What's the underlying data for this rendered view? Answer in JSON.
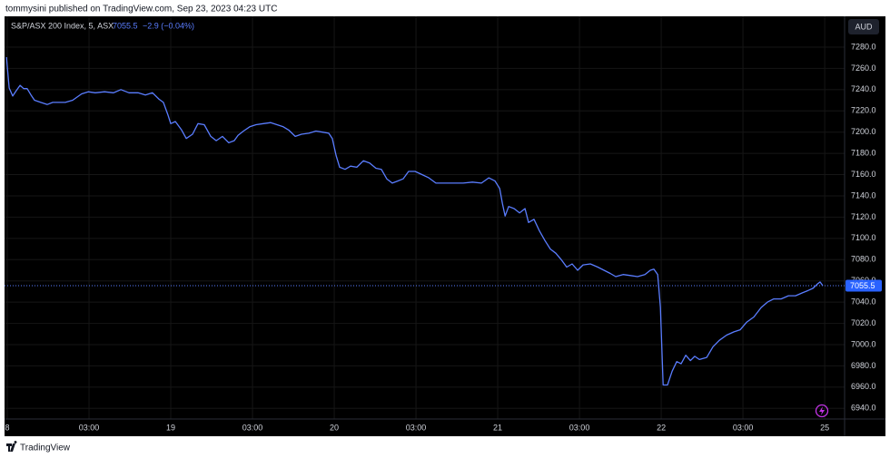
{
  "header": {
    "text": "tommysini published on TradingView.com, Sep 23, 2023 04:23 UTC"
  },
  "footer": {
    "brand": "TradingView"
  },
  "chart_data": {
    "type": "line",
    "currency": "AUD",
    "change": "−2.9 (−0.04%)",
    "last_value": 7055.5,
    "grid": true,
    "xlim": [
      -0.1,
      30.73
    ],
    "ylim": [
      6930,
      7309
    ],
    "xticks": [
      {
        "value": 0,
        "label": "8"
      },
      {
        "value": 3,
        "label": "03:00"
      },
      {
        "value": 6,
        "label": "19"
      },
      {
        "value": 9,
        "label": "03:00"
      },
      {
        "value": 12,
        "label": "20"
      },
      {
        "value": 15,
        "label": "03:00"
      },
      {
        "value": 18,
        "label": "21"
      },
      {
        "value": 21,
        "label": "03:00"
      },
      {
        "value": 24,
        "label": "22"
      },
      {
        "value": 27,
        "label": "03:00"
      },
      {
        "value": 30,
        "label": "25"
      }
    ],
    "yticks": [
      {
        "value": 6940,
        "label": "6940.0"
      },
      {
        "value": 6960,
        "label": "6960.0"
      },
      {
        "value": 6980,
        "label": "6980.0"
      },
      {
        "value": 7000,
        "label": "7000.0"
      },
      {
        "value": 7020,
        "label": "7020.0"
      },
      {
        "value": 7040,
        "label": "7040.0"
      },
      {
        "value": 7060,
        "label": "7060.0"
      },
      {
        "value": 7080,
        "label": "7080.0"
      },
      {
        "value": 7100,
        "label": "7100.0"
      },
      {
        "value": 7120,
        "label": "7120.0"
      },
      {
        "value": 7140,
        "label": "7140.0"
      },
      {
        "value": 7160,
        "label": "7160.0"
      },
      {
        "value": 7180,
        "label": "7180.0"
      },
      {
        "value": 7200,
        "label": "7200.0"
      },
      {
        "value": 7220,
        "label": "7220.0"
      },
      {
        "value": 7240,
        "label": "7240.0"
      },
      {
        "value": 7260,
        "label": "7260.0"
      },
      {
        "value": 7280,
        "label": "7280.0"
      }
    ],
    "series": [
      {
        "name": "S&P/ASX 200 Index, 5, ASX",
        "color": "#5a7dff",
        "x": [
          -0.03,
          0.07,
          0.2,
          0.33,
          0.47,
          0.6,
          0.73,
          0.87,
          1,
          1.23,
          1.47,
          1.67,
          1.9,
          2.13,
          2.4,
          2.73,
          2.97,
          3.23,
          3.57,
          3.9,
          4.17,
          4.47,
          4.8,
          5.07,
          5.33,
          5.57,
          5.73,
          5.9,
          6,
          6.17,
          6.4,
          6.57,
          6.8,
          7,
          7.23,
          7.47,
          7.67,
          7.9,
          8.13,
          8.33,
          8.47,
          8.67,
          8.9,
          9.13,
          9.4,
          9.67,
          9.9,
          10.13,
          10.33,
          10.57,
          10.8,
          11.07,
          11.33,
          11.57,
          11.8,
          11.93,
          12.07,
          12.2,
          12.4,
          12.6,
          12.83,
          13.07,
          13.3,
          13.53,
          13.73,
          13.93,
          14.13,
          14.33,
          14.53,
          14.73,
          14.97,
          15.23,
          15.47,
          15.73,
          16.07,
          16.4,
          16.73,
          17.07,
          17.4,
          17.67,
          17.9,
          18.07,
          18.17,
          18.27,
          18.4,
          18.6,
          18.8,
          19,
          19.13,
          19.33,
          19.53,
          19.73,
          19.93,
          20.13,
          20.33,
          20.53,
          20.73,
          20.93,
          21.13,
          21.4,
          21.67,
          21.9,
          22.13,
          22.33,
          22.6,
          22.87,
          23.13,
          23.4,
          23.6,
          23.73,
          23.87,
          23.97,
          24.07,
          24.23,
          24.4,
          24.57,
          24.73,
          24.9,
          25.07,
          25.23,
          25.4,
          25.67,
          25.9,
          26.13,
          26.4,
          26.67,
          26.9,
          27.13,
          27.4,
          27.67,
          27.9,
          28.13,
          28.4,
          28.67,
          28.93,
          29.2,
          29.4,
          29.57,
          29.73,
          29.83,
          29.93
        ],
        "values": [
          7270.6,
          7241.6,
          7234,
          7239,
          7244,
          7241,
          7241,
          7235,
          7230,
          7228,
          7226,
          7228,
          7228,
          7228,
          7230,
          7236,
          7238,
          7237,
          7238,
          7237,
          7240,
          7237,
          7237,
          7235,
          7237,
          7231,
          7228,
          7216,
          7208,
          7210,
          7202,
          7194,
          7198,
          7208,
          7207,
          7196,
          7192,
          7196,
          7190,
          7192,
          7197,
          7201,
          7205,
          7207,
          7208,
          7209,
          7207,
          7205,
          7202,
          7196,
          7198,
          7199,
          7201,
          7200,
          7199,
          7194,
          7178,
          7167,
          7165,
          7168,
          7167,
          7173,
          7171,
          7166,
          7165,
          7156,
          7152,
          7154,
          7156,
          7163,
          7163,
          7160,
          7157,
          7152,
          7152,
          7152,
          7152,
          7153,
          7152,
          7157,
          7154,
          7147,
          7133,
          7121,
          7130,
          7128,
          7124,
          7128,
          7115,
          7118,
          7107,
          7098,
          7090,
          7086,
          7080,
          7073,
          7076,
          7070,
          7075,
          7076,
          7073,
          7070,
          7067,
          7064,
          7066,
          7065,
          7064,
          7066,
          7070,
          7071,
          7066,
          7035,
          6962,
          6962,
          6975,
          6984,
          6982,
          6990,
          6985,
          6989,
          6986,
          6988,
          6998,
          7004,
          7009,
          7012,
          7014,
          7021,
          7026,
          7035,
          7040,
          7043,
          7043,
          7046,
          7046,
          7049,
          7051,
          7053,
          7057,
          7059,
          7055.5
        ]
      }
    ]
  }
}
